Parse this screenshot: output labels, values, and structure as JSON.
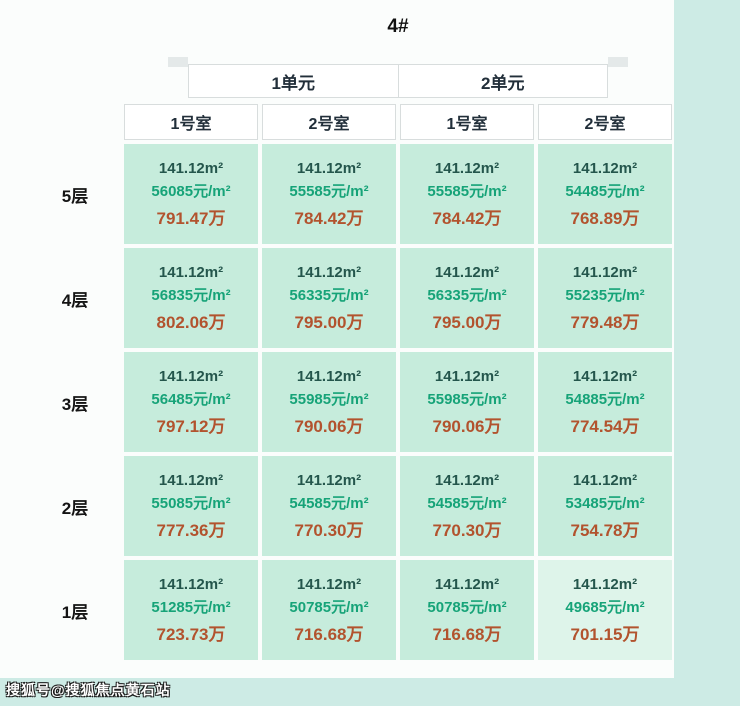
{
  "page": {
    "title": "4#",
    "watermark": "搜狐号@搜狐焦点黄石站"
  },
  "colors": {
    "page_background": "#cdebe5",
    "panel_background": "#fbfdfc",
    "cell_background": "#c6ecdc",
    "area_text": "#24564c",
    "unit_price_text": "#16a378",
    "total_price_text": "#b2532e"
  },
  "table": {
    "unit_headers": [
      "1单元",
      "2单元"
    ],
    "room_headers": [
      "1号室",
      "2号室",
      "1号室",
      "2号室"
    ],
    "floors": [
      {
        "label": "5层",
        "cells": [
          {
            "area": "141.12m²",
            "price": "56085元/m²",
            "total": "791.47万"
          },
          {
            "area": "141.12m²",
            "price": "55585元/m²",
            "total": "784.42万"
          },
          {
            "area": "141.12m²",
            "price": "55585元/m²",
            "total": "784.42万"
          },
          {
            "area": "141.12m²",
            "price": "54485元/m²",
            "total": "768.89万"
          }
        ]
      },
      {
        "label": "4层",
        "cells": [
          {
            "area": "141.12m²",
            "price": "56835元/m²",
            "total": "802.06万"
          },
          {
            "area": "141.12m²",
            "price": "56335元/m²",
            "total": "795.00万"
          },
          {
            "area": "141.12m²",
            "price": "56335元/m²",
            "total": "795.00万"
          },
          {
            "area": "141.12m²",
            "price": "55235元/m²",
            "total": "779.48万"
          }
        ]
      },
      {
        "label": "3层",
        "cells": [
          {
            "area": "141.12m²",
            "price": "56485元/m²",
            "total": "797.12万"
          },
          {
            "area": "141.12m²",
            "price": "55985元/m²",
            "total": "790.06万"
          },
          {
            "area": "141.12m²",
            "price": "55985元/m²",
            "total": "790.06万"
          },
          {
            "area": "141.12m²",
            "price": "54885元/m²",
            "total": "774.54万"
          }
        ]
      },
      {
        "label": "2层",
        "cells": [
          {
            "area": "141.12m²",
            "price": "55085元/m²",
            "total": "777.36万"
          },
          {
            "area": "141.12m²",
            "price": "54585元/m²",
            "total": "770.30万"
          },
          {
            "area": "141.12m²",
            "price": "54585元/m²",
            "total": "770.30万"
          },
          {
            "area": "141.12m²",
            "price": "53485元/m²",
            "total": "754.78万"
          }
        ]
      },
      {
        "label": "1层",
        "cells": [
          {
            "area": "141.12m²",
            "price": "51285元/m²",
            "total": "723.73万"
          },
          {
            "area": "141.12m²",
            "price": "50785元/m²",
            "total": "716.68万"
          },
          {
            "area": "141.12m²",
            "price": "50785元/m²",
            "total": "716.68万"
          },
          {
            "area": "141.12m²",
            "price": "49685元/m²",
            "total": "701.15万"
          }
        ]
      }
    ]
  },
  "chart_data": {
    "type": "table",
    "title": "4#",
    "column_groups": [
      {
        "label": "1单元",
        "columns": [
          "1号室",
          "2号室"
        ]
      },
      {
        "label": "2单元",
        "columns": [
          "1号室",
          "2号室"
        ]
      }
    ],
    "row_labels": [
      "5层",
      "4层",
      "3层",
      "2层",
      "1层"
    ],
    "area_m2": 141.12,
    "unit_price_yuan_per_m2": [
      [
        56085,
        55585,
        55585,
        54485
      ],
      [
        56835,
        56335,
        56335,
        55235
      ],
      [
        56485,
        55985,
        55985,
        54885
      ],
      [
        55085,
        54585,
        54585,
        53485
      ],
      [
        51285,
        50785,
        50785,
        49685
      ]
    ],
    "total_price_wan": [
      [
        791.47,
        784.42,
        784.42,
        768.89
      ],
      [
        802.06,
        795.0,
        795.0,
        779.48
      ],
      [
        797.12,
        790.06,
        790.06,
        774.54
      ],
      [
        777.36,
        770.3,
        770.3,
        754.78
      ],
      [
        723.73,
        716.68,
        716.68,
        701.15
      ]
    ]
  }
}
